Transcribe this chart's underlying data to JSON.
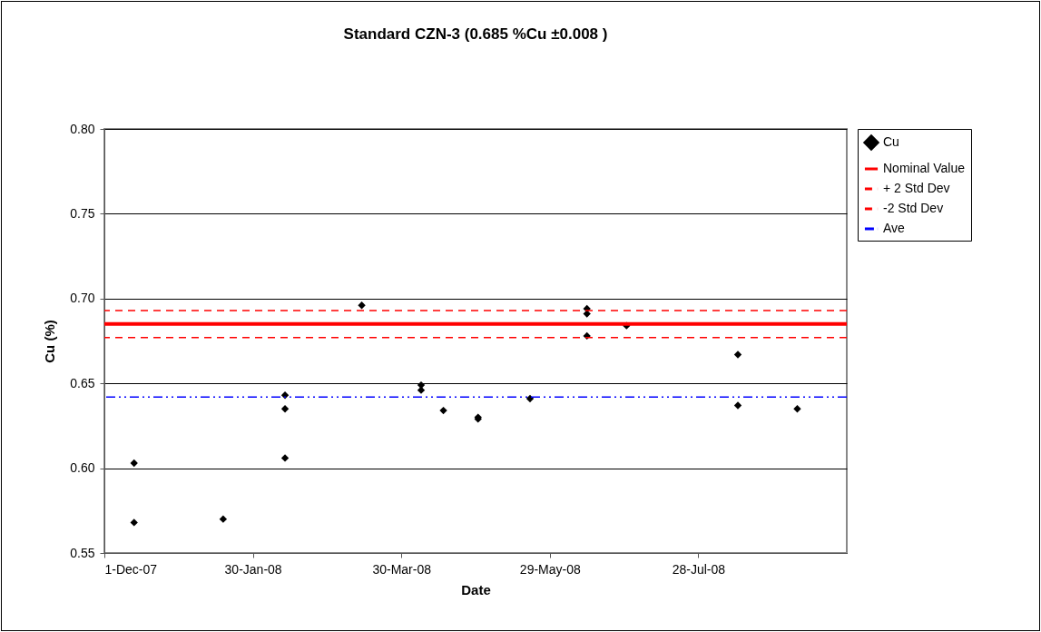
{
  "chart_data": {
    "type": "scatter",
    "title": "Standard CZN-3 (0.685 %Cu ±0.008 )",
    "xlabel": "Date",
    "ylabel": "Cu (%)",
    "series": [
      {
        "name": "Cu",
        "color": "#000000",
        "x": [
          "2007-12-13",
          "2007-12-13",
          "2008-01-18",
          "2008-02-12",
          "2008-02-12",
          "2008-02-12",
          "2008-03-14",
          "2008-04-07",
          "2008-04-07",
          "2008-04-16",
          "2008-04-30",
          "2008-04-30",
          "2008-05-21",
          "2008-06-13",
          "2008-06-13",
          "2008-06-13",
          "2008-06-29",
          "2008-08-13",
          "2008-08-13",
          "2008-09-06"
        ],
        "values": [
          0.603,
          0.568,
          0.57,
          0.643,
          0.635,
          0.606,
          0.696,
          0.649,
          0.646,
          0.634,
          0.63,
          0.629,
          0.641,
          0.694,
          0.691,
          0.678,
          0.684,
          0.667,
          0.637,
          0.635
        ]
      }
    ],
    "marker": "diamond",
    "ref_lines": [
      {
        "axis": "y",
        "value": 0.685,
        "label": "Nominal Value",
        "color": "#ff0000",
        "line_style": "solid"
      },
      {
        "axis": "y",
        "value": 0.693,
        "label": "+ 2 Std Dev",
        "color": "#ff0000",
        "line_style": "dashed"
      },
      {
        "axis": "y",
        "value": 0.677,
        "label": "-2 Std Dev",
        "color": "#ff0000",
        "line_style": "dashed"
      },
      {
        "axis": "y",
        "value": 0.642,
        "label": "Ave",
        "color": "#0000ff",
        "line_style": "dashdot"
      }
    ],
    "xlim": [
      "2007-12-01",
      "2008-09-26"
    ],
    "xticks": [
      {
        "value": "2007-12-01",
        "label": "1-Dec-07"
      },
      {
        "value": "2008-01-30",
        "label": "30-Jan-08"
      },
      {
        "value": "2008-03-30",
        "label": "30-Mar-08"
      },
      {
        "value": "2008-05-29",
        "label": "29-May-08"
      },
      {
        "value": "2008-07-28",
        "label": "28-Jul-08"
      }
    ],
    "ylim": [
      0.55,
      0.8
    ],
    "yticks": [
      {
        "value": 0.55,
        "label": "0.55"
      },
      {
        "value": 0.6,
        "label": "0.60"
      },
      {
        "value": 0.65,
        "label": "0.65"
      },
      {
        "value": 0.7,
        "label": "0.70"
      },
      {
        "value": 0.75,
        "label": "0.75"
      },
      {
        "value": 0.8,
        "label": "0.80"
      }
    ],
    "grid": "y",
    "legend": "right"
  }
}
